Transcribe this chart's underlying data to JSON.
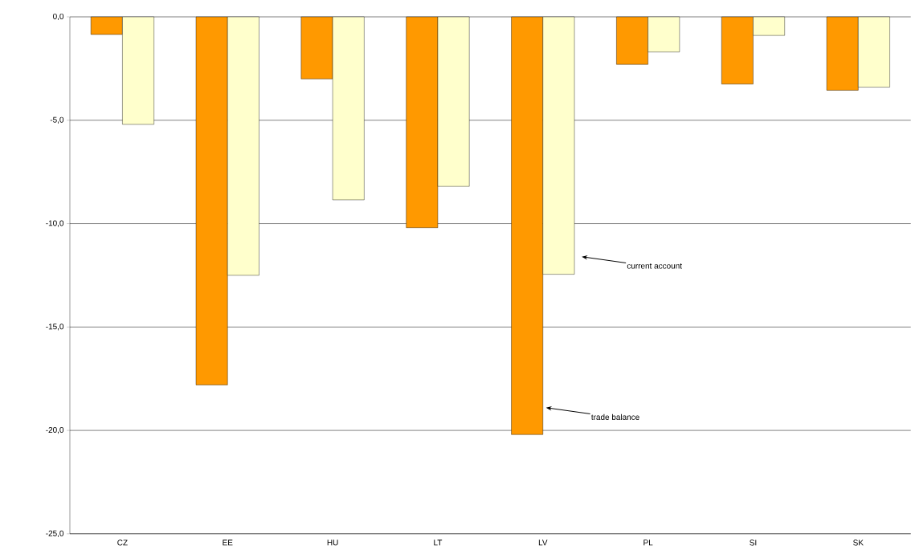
{
  "chart_data": {
    "type": "bar",
    "categories": [
      "CZ",
      "EE",
      "HU",
      "LT",
      "LV",
      "PL",
      "SI",
      "SK"
    ],
    "series": [
      {
        "name": null,
        "color": "#ff9900",
        "values": [
          -0.85,
          -17.8,
          -3.0,
          -10.2,
          -20.2,
          -2.3,
          -3.25,
          -3.55
        ]
      },
      {
        "name": null,
        "color": "#ffffcc",
        "values": [
          -5.2,
          -12.5,
          -8.85,
          -8.2,
          -12.45,
          -1.7,
          -0.9,
          -3.4
        ]
      }
    ],
    "ylim": [
      -25,
      0
    ],
    "yticks": [
      {
        "value": -25,
        "label": "-25,0"
      },
      {
        "value": -20,
        "label": "-20,0"
      },
      {
        "value": -15,
        "label": "-15,0"
      },
      {
        "value": -10,
        "label": "-10,0"
      },
      {
        "value": -5,
        "label": "-5,0"
      },
      {
        "value": 0,
        "label": "0,0"
      }
    ],
    "grid": "y",
    "annotations": [
      "current account",
      "trade balance"
    ]
  }
}
